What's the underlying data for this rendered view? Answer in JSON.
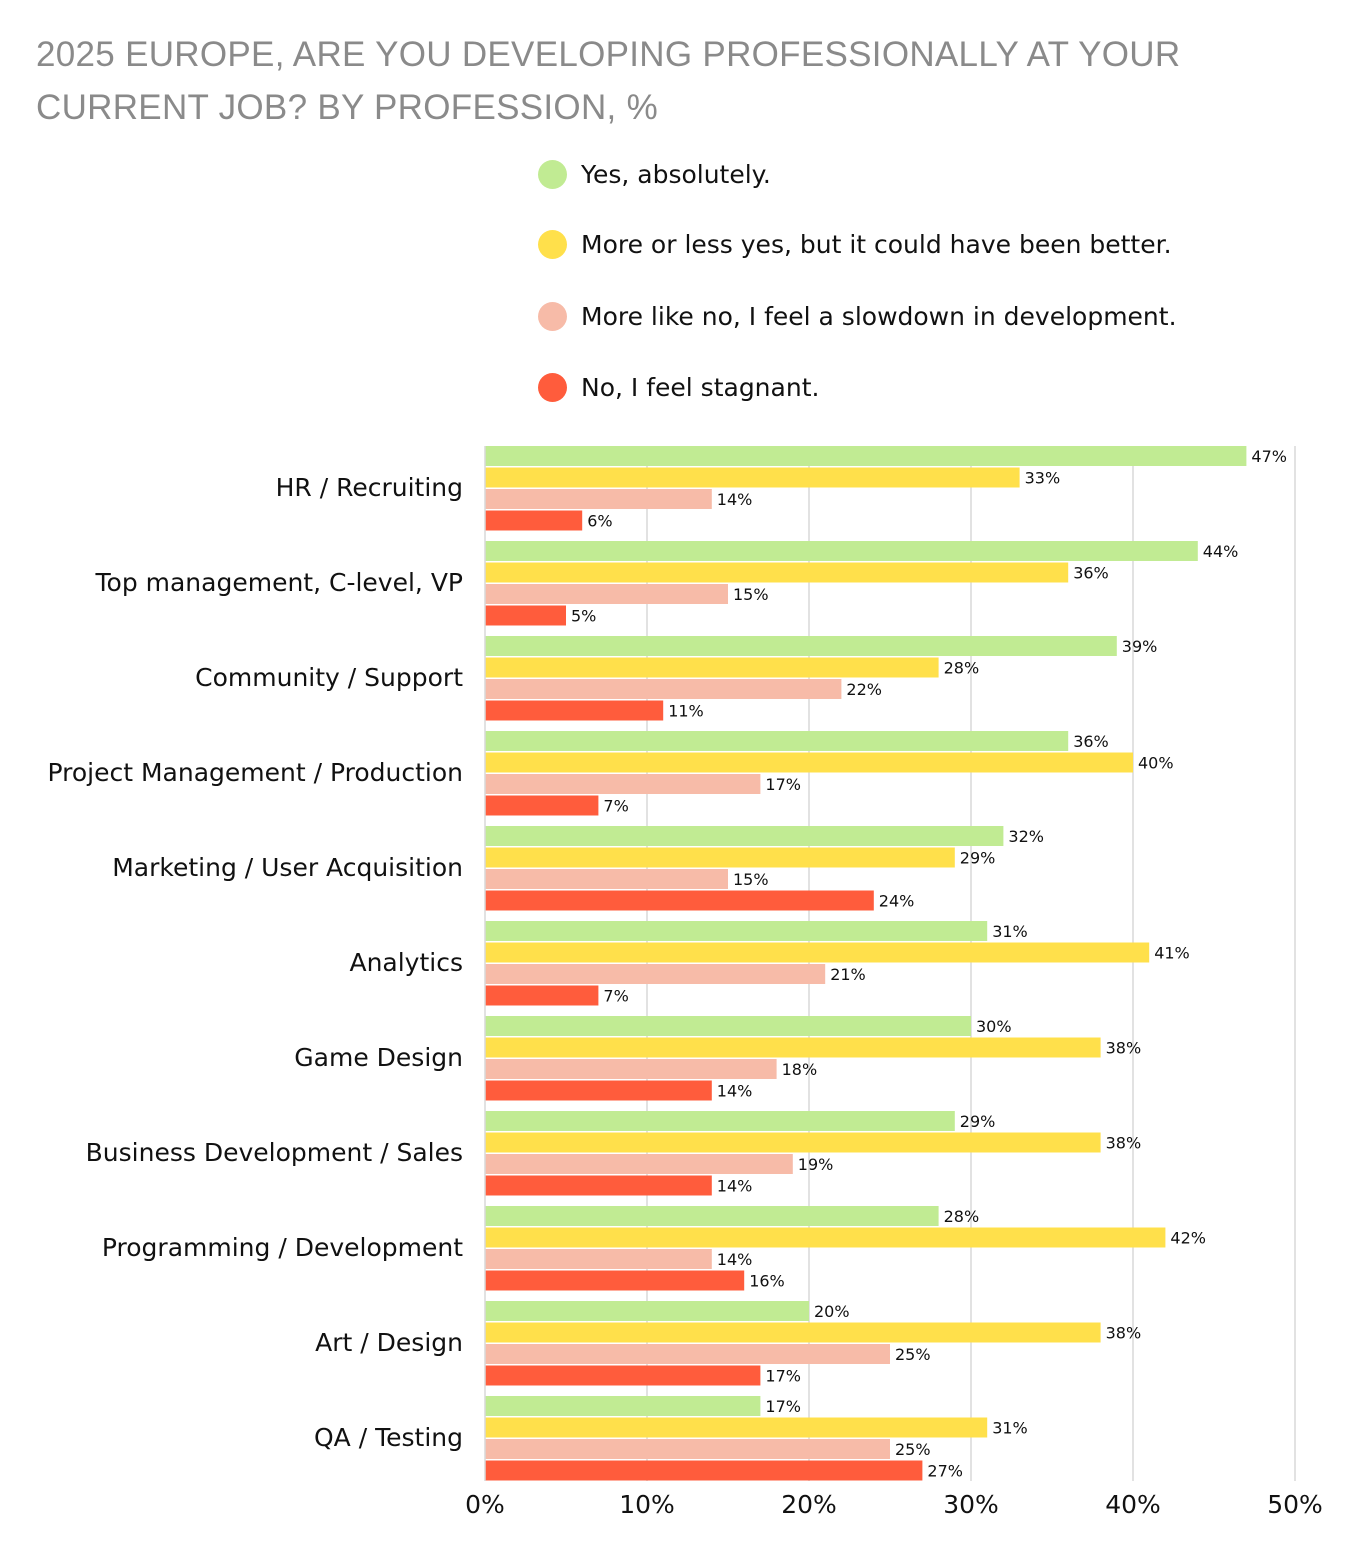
{
  "chart_data": {
    "type": "bar",
    "orientation": "horizontal",
    "title": "2025 EUROPE, ARE YOU DEVELOPING PROFESSIONALLY AT YOUR CURRENT JOB? BY PROFESSION, %",
    "xlabel": "",
    "ylabel": "",
    "xlim": [
      0,
      50
    ],
    "xticks": [
      "0%",
      "10%",
      "20%",
      "30%",
      "40%",
      "50%"
    ],
    "grid": true,
    "legend_position": "top-right",
    "categories": [
      "HR / Recruiting",
      "Top management, C-level, VP",
      "Community / Support",
      "Project Management / Production",
      "Marketing / User Acquisition",
      "Analytics",
      "Game Design",
      "Business Development / Sales",
      "Programming / Development",
      "Art / Design",
      "QA / Testing"
    ],
    "series": [
      {
        "name": "Yes, absolutely.",
        "color": "#c1eb93",
        "values": [
          47,
          44,
          39,
          36,
          32,
          31,
          30,
          29,
          28,
          20,
          17
        ]
      },
      {
        "name": "More or less yes, but it could have been better.",
        "color": "#ffe04b",
        "values": [
          33,
          36,
          28,
          40,
          29,
          41,
          38,
          38,
          42,
          38,
          31
        ]
      },
      {
        "name": "More like no, I feel a slowdown in development.",
        "color": "#f7bba8",
        "values": [
          14,
          15,
          22,
          17,
          15,
          21,
          18,
          19,
          14,
          25,
          25
        ]
      },
      {
        "name": "No, I feel stagnant.",
        "color": "#ff5c3c",
        "values": [
          6,
          5,
          11,
          7,
          24,
          7,
          14,
          14,
          16,
          17,
          27
        ]
      }
    ]
  }
}
